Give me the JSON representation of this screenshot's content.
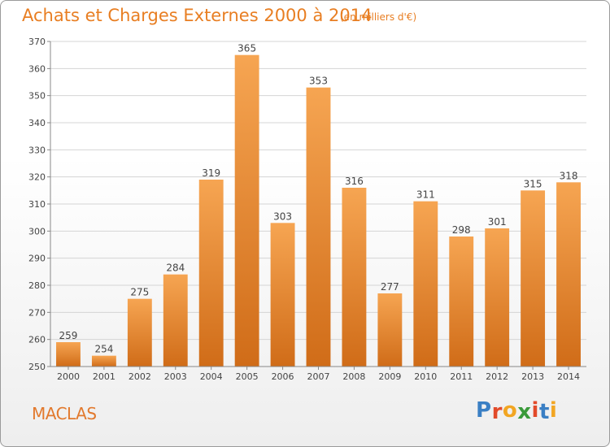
{
  "header": {
    "title": "Achats et Charges Externes 2000 à 2014",
    "subtitle": "(en milliers d'€)"
  },
  "footer": {
    "commune": "MACLAS",
    "brand": "Proxiti"
  },
  "colors": {
    "accent": "#e87e22",
    "bar_light": "#f6a552",
    "bar_dark": "#d06c18",
    "logo_letters": [
      "#3a7fc4",
      "#e24a2a",
      "#f2a623",
      "#3a9a3a",
      "#e24a2a",
      "#3a7fc4",
      "#f2a623"
    ]
  },
  "chart_data": {
    "type": "bar",
    "title": "Achats et Charges Externes 2000 à 2014",
    "subtitle": "(en milliers d'€)",
    "categories": [
      "2000",
      "2001",
      "2002",
      "2003",
      "2004",
      "2005",
      "2006",
      "2007",
      "2008",
      "2009",
      "2010",
      "2011",
      "2012",
      "2013",
      "2014"
    ],
    "values": [
      259,
      254,
      275,
      284,
      319,
      365,
      303,
      353,
      316,
      277,
      311,
      298,
      301,
      315,
      318
    ],
    "ylim": [
      250,
      370
    ],
    "yticks": [
      250,
      260,
      270,
      280,
      290,
      300,
      310,
      320,
      330,
      340,
      350,
      360,
      370
    ],
    "grid": true,
    "data_labels": true
  }
}
